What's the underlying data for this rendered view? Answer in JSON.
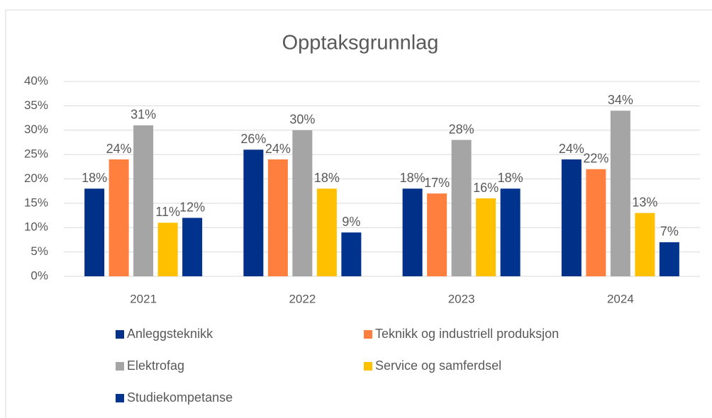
{
  "chart_data": {
    "type": "bar",
    "title": "Opptaksgrunnlag",
    "categories": [
      "2021",
      "2022",
      "2023",
      "2024"
    ],
    "series": [
      {
        "name": "Anleggsteknikk",
        "color": "#003087",
        "values": [
          18,
          26,
          18,
          24
        ],
        "value_labels": [
          "18%",
          "26%",
          "18%",
          "24%"
        ]
      },
      {
        "name": "Teknikk og industriell produksjon",
        "color": "#ff7f3f",
        "values": [
          24,
          24,
          17,
          22
        ],
        "value_labels": [
          "24%",
          "24%",
          "17%",
          "22%"
        ]
      },
      {
        "name": "Elektrofag",
        "color": "#a5a5a5",
        "values": [
          31,
          30,
          28,
          34
        ],
        "value_labels": [
          "31%",
          "30%",
          "28%",
          "34%"
        ]
      },
      {
        "name": "Service og samferdsel",
        "color": "#ffc000",
        "values": [
          11,
          18,
          16,
          13
        ],
        "value_labels": [
          "11%",
          "18%",
          "16%",
          "13%"
        ]
      },
      {
        "name": "Studiekompetanse",
        "color": "#00338d",
        "values": [
          12,
          9,
          18,
          7
        ],
        "value_labels": [
          "12%",
          "9%",
          "18%",
          "7%"
        ]
      }
    ],
    "ylim": [
      0,
      40
    ],
    "yticks": [
      {
        "value": 0,
        "label": "0%"
      },
      {
        "value": 5,
        "label": "5%"
      },
      {
        "value": 10,
        "label": "10%"
      },
      {
        "value": 15,
        "label": "15%"
      },
      {
        "value": 20,
        "label": "20%"
      },
      {
        "value": 25,
        "label": "25%"
      },
      {
        "value": 30,
        "label": "30%"
      },
      {
        "value": 35,
        "label": "35%"
      },
      {
        "value": 40,
        "label": "40%"
      }
    ],
    "grid": true,
    "legend": "bottom"
  }
}
